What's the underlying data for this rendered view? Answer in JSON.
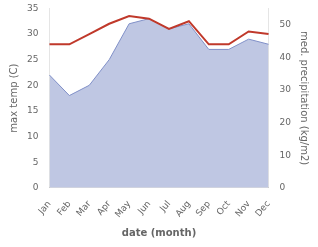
{
  "chart_data": {
    "type": "line",
    "xlabel": "date (month)",
    "ylabel": "max temp (C)",
    "y2label": "med. precipitation (kg/m2)",
    "categories": [
      "Jan",
      "Feb",
      "Mar",
      "Apr",
      "May",
      "Jun",
      "Jul",
      "Aug",
      "Sep",
      "Oct",
      "Nov",
      "Dec"
    ],
    "series": [
      {
        "type": "area",
        "color": "#8090c8",
        "values": [
          22,
          18,
          20,
          25,
          32,
          33,
          31,
          32,
          27,
          27,
          29,
          28
        ]
      },
      {
        "type": "line",
        "color": "#c0392b",
        "values": [
          28.0,
          28.0,
          30.0,
          32.0,
          33.5,
          33.0,
          31.0,
          32.5,
          28.0,
          28.0,
          30.5,
          30.0
        ]
      }
    ],
    "ylim": [
      0,
      35
    ],
    "yticks": [
      0,
      5,
      10,
      15,
      20,
      25,
      30,
      35
    ],
    "y2lim": [
      0,
      55
    ],
    "y2ticks": [
      0,
      10,
      20,
      30,
      40,
      50
    ],
    "grid": false
  }
}
